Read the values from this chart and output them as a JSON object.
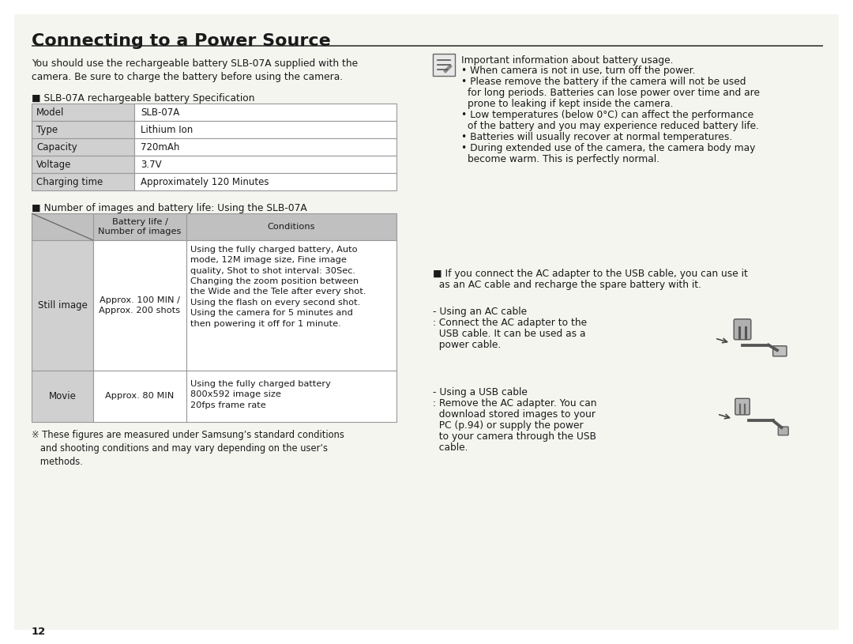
{
  "title": "Connecting to a Power Source",
  "bg_color": "#ffffff",
  "text_color": "#1a1a1a",
  "intro_text": "You should use the rechargeable battery SLB-07A supplied with the\ncamera. Be sure to charge the battery before using the camera.",
  "spec_heading": "■ SLB-07A rechargeable battery Specification",
  "spec_rows": [
    [
      "Model",
      "SLB-07A"
    ],
    [
      "Type",
      "Lithium Ion"
    ],
    [
      "Capacity",
      "720mAh"
    ],
    [
      "Voltage",
      "3.7V"
    ],
    [
      "Charging time",
      "Approximately 120 Minutes"
    ]
  ],
  "battery_heading": "■ Number of images and battery life: Using the SLB-07A",
  "bat_col2_header": "Battery life /\nNumber of images",
  "bat_col3_header": "Conditions",
  "still_col2": "Approx. 100 MIN /\nApprox. 200 shots",
  "still_col3": "Using the fully charged battery, Auto\nmode, 12M image size, Fine image\nquality, Shot to shot interval: 30Sec.\nChanging the zoom position between\nthe Wide and the Tele after every shot.\nUsing the flash on every second shot.\nUsing the camera for 5 minutes and\nthen powering it off for 1 minute.",
  "movie_col2": "Approx. 80 MIN",
  "movie_col3": "Using the fully charged battery\n800x592 image size\n20fps frame rate",
  "note_text": "※ These figures are measured under Samsung’s standard conditions\n   and shooting conditions and may vary depending on the user’s\n   methods.",
  "page_number": "12",
  "right_note_heading": "Important information about battery usage.",
  "right_bullet1": "When camera is not in use, turn off the power.",
  "right_bullet2a": "Please remove the battery if the camera will not be used",
  "right_bullet2b": "for long periods. Batteries can lose power over time and are",
  "right_bullet2c": "prone to leaking if kept inside the camera.",
  "right_bullet3a": "Low temperatures (below 0°C) can affect the performance",
  "right_bullet3b": "of the battery and you may experience reduced battery life.",
  "right_bullet4": "Batteries will usually recover at normal temperatures.",
  "right_bullet5a": "During extended use of the camera, the camera body may",
  "right_bullet5b": "become warm. This is perfectly normal.",
  "ac_adapter_note_line1": "■ If you connect the AC adapter to the USB cable, you can use it",
  "ac_adapter_note_line2": "  as an AC cable and recharge the spare battery with it.",
  "using_ac_line1": "- Using an AC cable",
  "using_ac_line2": ": Connect the AC adapter to the",
  "using_ac_line3": "  USB cable. It can be used as a",
  "using_ac_line4": "  power cable.",
  "using_usb_line1": "- Using a USB cable",
  "using_usb_line2": ": Remove the AC adapter. You can",
  "using_usb_line3": "  download stored images to your",
  "using_usb_line4": "  PC (p.94) or supply the power",
  "using_usb_line5": "  to your camera through the USB",
  "using_usb_line6": "  cable.",
  "cell_bg_left": "#d0d0d0",
  "cell_bg_white": "#ffffff",
  "table_border_color": "#999999",
  "header_bg": "#c0c0c0"
}
